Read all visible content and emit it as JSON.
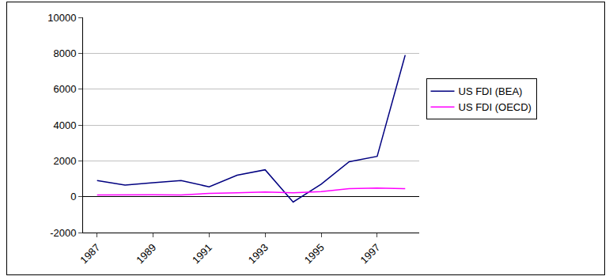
{
  "chart_data": {
    "type": "line",
    "categories": [
      "1987",
      null,
      "1989",
      null,
      "1991",
      null,
      "1993",
      null,
      "1995",
      null,
      "1997",
      null
    ],
    "series": [
      {
        "name": "US FDI (BEA)",
        "color": "#000080",
        "values": [
          900,
          650,
          780,
          900,
          550,
          1200,
          1500,
          -300,
          700,
          1950,
          2250,
          7900
        ]
      },
      {
        "name": "US FDI (OECD)",
        "color": "#ff00ff",
        "values": [
          100,
          120,
          110,
          100,
          180,
          220,
          260,
          220,
          280,
          450,
          480,
          450
        ]
      }
    ],
    "ylim": [
      -2000,
      10000
    ],
    "yticks": [
      -2000,
      0,
      2000,
      4000,
      6000,
      8000,
      10000
    ],
    "grid": true,
    "legend": "right"
  }
}
